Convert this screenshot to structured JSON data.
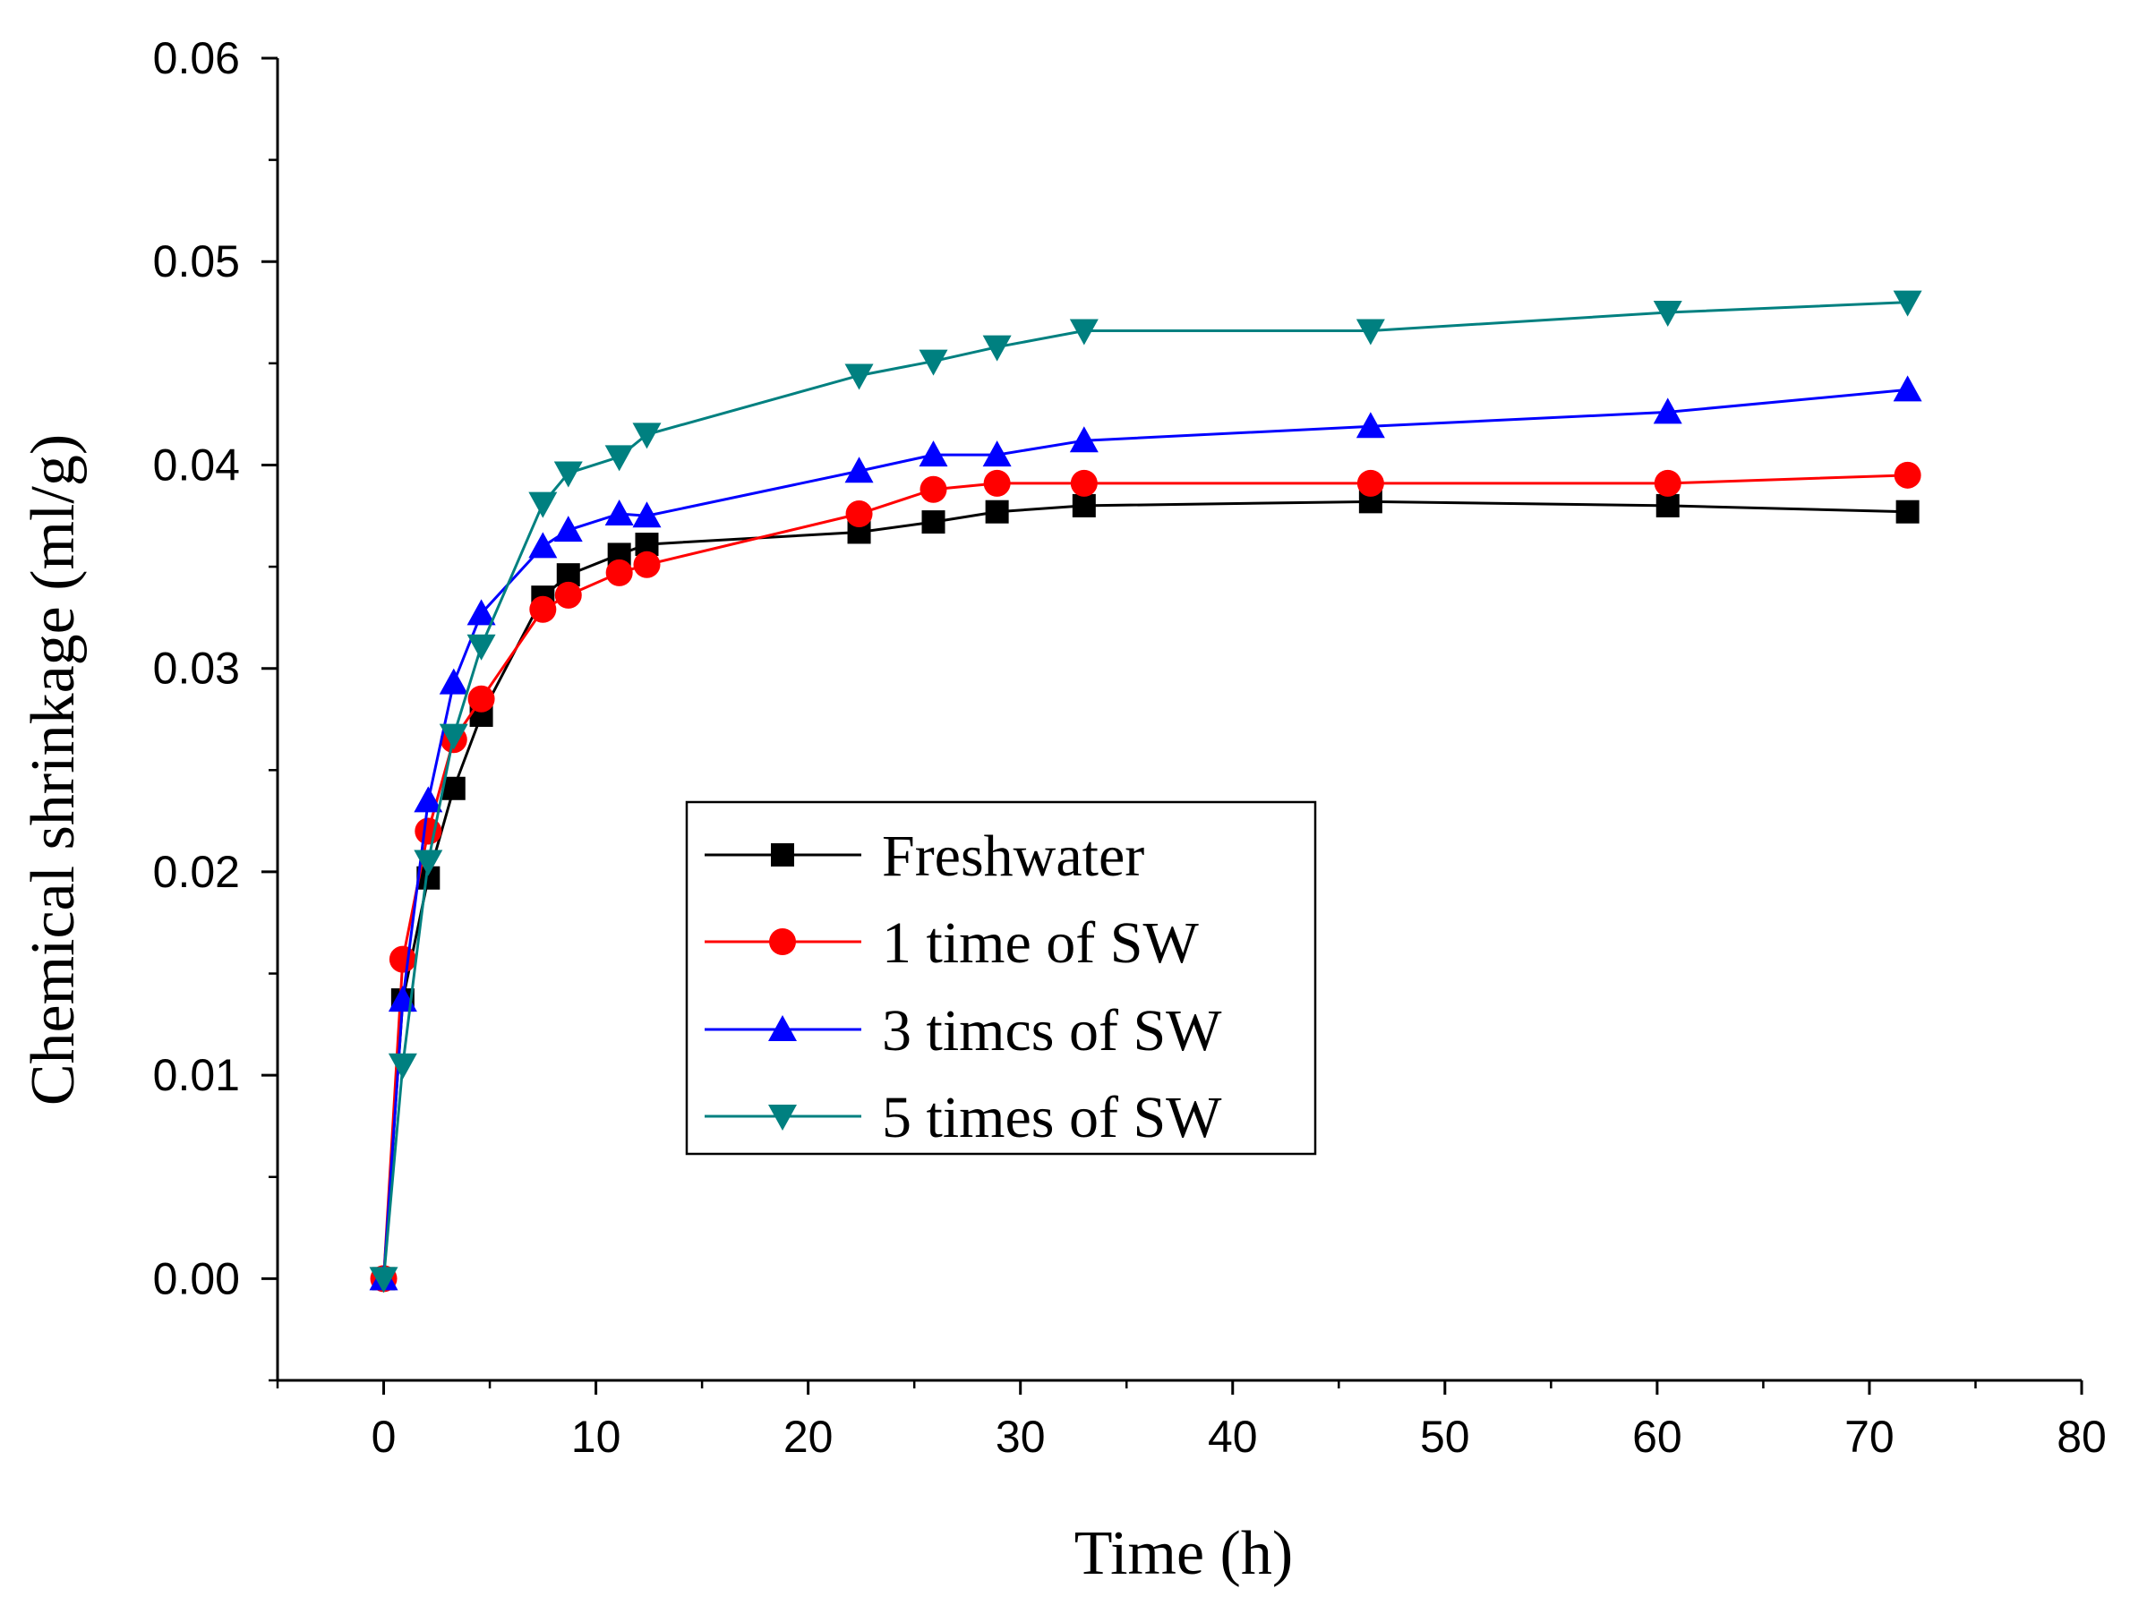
{
  "chart_data": {
    "type": "line",
    "title": "",
    "xlabel": "Time (h)",
    "ylabel": "Chemical shrinkage (ml/g)",
    "xlim": [
      -5,
      80
    ],
    "ylim": [
      -0.005,
      0.06
    ],
    "x_ticks": [
      0,
      10,
      20,
      30,
      40,
      50,
      60,
      70,
      80
    ],
    "x_tick_labels": [
      "0",
      "10",
      "20",
      "30",
      "40",
      "50",
      "60",
      "70",
      "80"
    ],
    "y_ticks": [
      0.0,
      0.01,
      0.02,
      0.03,
      0.04,
      0.05,
      0.06
    ],
    "y_tick_labels": [
      "0.00",
      "0.01",
      "0.02",
      "0.03",
      "0.04",
      "0.05",
      "0.06"
    ],
    "grid": false,
    "legend_position": "center",
    "series": [
      {
        "name": "Freshwater",
        "color": "#000000",
        "marker": "square",
        "x": [
          0,
          0.9,
          2.1,
          3.3,
          4.6,
          7.5,
          8.7,
          11.1,
          12.4,
          22.4,
          25.9,
          28.9,
          33.0,
          46.5,
          60.5,
          71.8
        ],
        "y": [
          0,
          0.0137,
          0.0197,
          0.0241,
          0.0277,
          0.0335,
          0.0346,
          0.0356,
          0.0361,
          0.0367,
          0.0372,
          0.0377,
          0.038,
          0.0382,
          0.038,
          0.0377
        ]
      },
      {
        "name": "1 time of SW",
        "color": "#ff0000",
        "marker": "circle",
        "x": [
          0,
          0.9,
          2.1,
          3.3,
          4.6,
          7.5,
          8.7,
          11.1,
          12.4,
          22.4,
          25.9,
          28.9,
          33.0,
          46.5,
          60.5,
          71.8
        ],
        "y": [
          0,
          0.0157,
          0.022,
          0.0265,
          0.0285,
          0.0329,
          0.0336,
          0.0347,
          0.0351,
          0.0376,
          0.0388,
          0.0391,
          0.0391,
          0.0391,
          0.0391,
          0.0395
        ]
      },
      {
        "name": "3 timcs of SW",
        "color": "#0000ff",
        "marker": "triangle-up",
        "x": [
          0,
          0.9,
          2.1,
          3.3,
          4.6,
          7.5,
          8.7,
          11.1,
          12.4,
          22.4,
          25.9,
          28.9,
          33.0,
          46.5,
          60.5,
          71.8
        ],
        "y": [
          0,
          0.0137,
          0.0235,
          0.0293,
          0.0327,
          0.036,
          0.0368,
          0.0376,
          0.0375,
          0.0397,
          0.0405,
          0.0405,
          0.0412,
          0.0419,
          0.0426,
          0.0437
        ]
      },
      {
        "name": "5 times of SW",
        "color": "#008080",
        "marker": "triangle-down",
        "x": [
          0,
          0.9,
          2.1,
          3.3,
          4.6,
          7.5,
          8.7,
          11.1,
          12.4,
          22.4,
          25.9,
          28.9,
          33.0,
          46.5,
          60.5,
          71.8
        ],
        "y": [
          0,
          0.0105,
          0.0205,
          0.0267,
          0.0311,
          0.0381,
          0.0396,
          0.0404,
          0.0415,
          0.0444,
          0.0451,
          0.0458,
          0.0466,
          0.0466,
          0.0475,
          0.048
        ]
      }
    ]
  }
}
